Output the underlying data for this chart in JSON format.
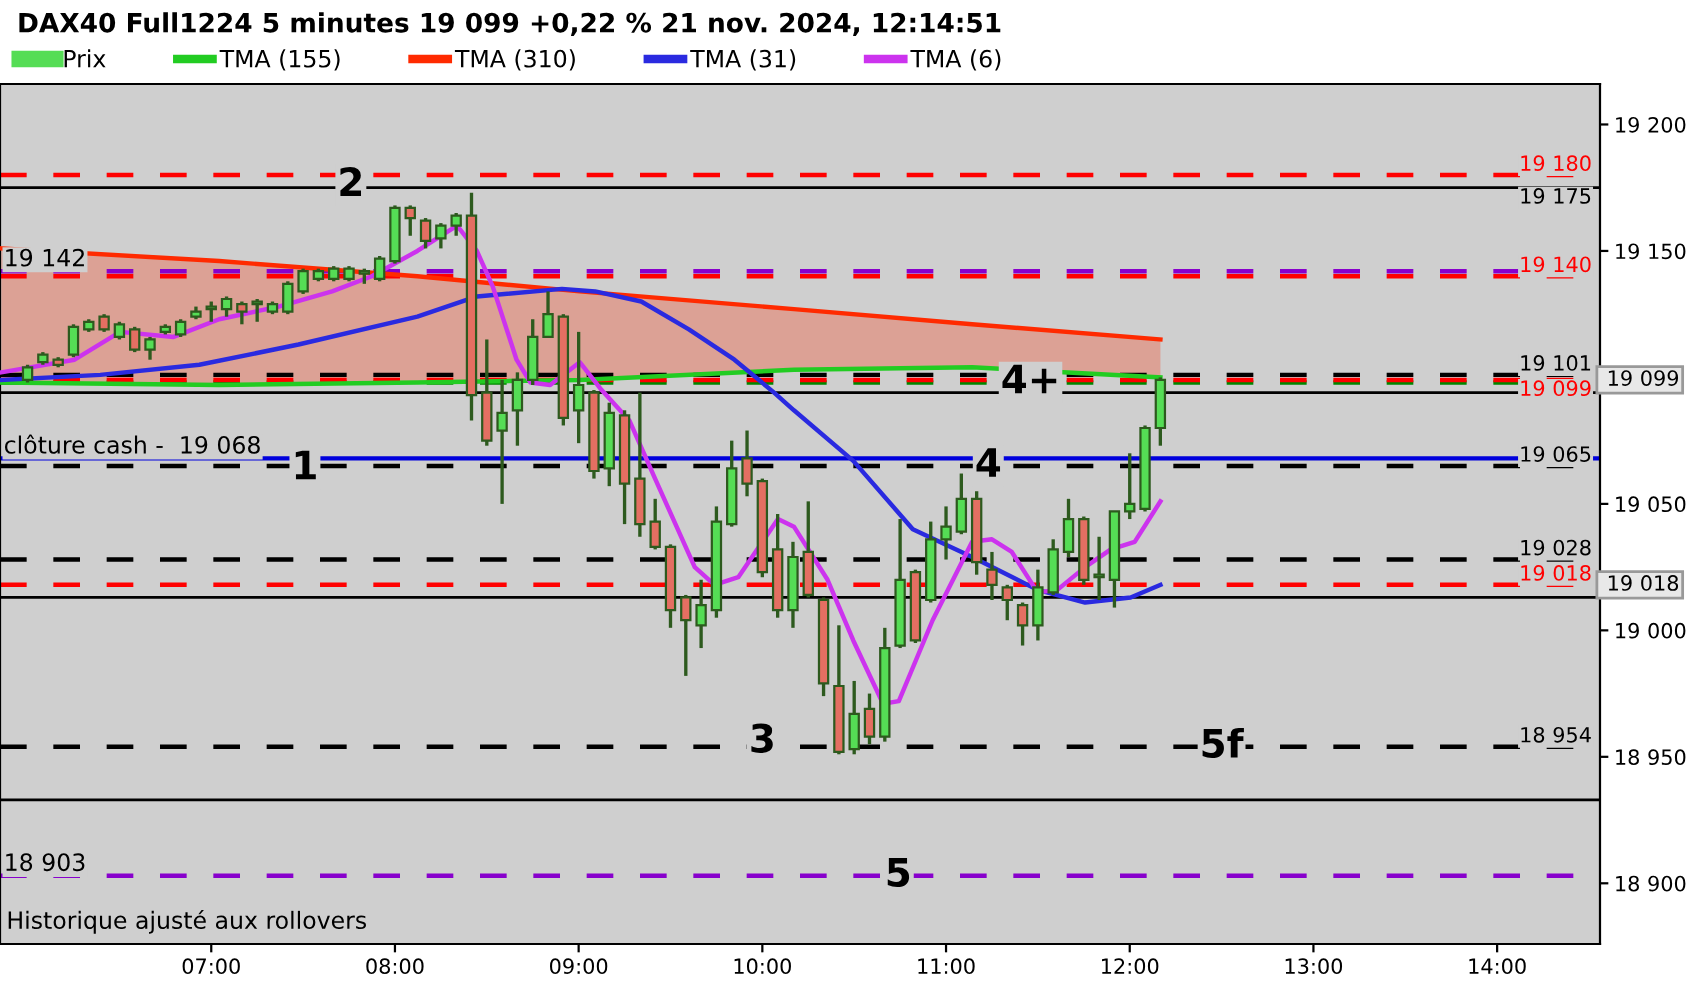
{
  "chart_data": {
    "type": "candlestick",
    "title": "DAX40 Full1224 5 minutes 19 099 +0,22 % 21 nov. 2024, 12:14:51",
    "legend": "top",
    "grid": false,
    "xlim": [
      5.85,
      14.56
    ],
    "ylim": [
      18876,
      19216
    ],
    "xticks": [
      {
        "value": 7,
        "label": "07:00"
      },
      {
        "value": 8,
        "label": "08:00"
      },
      {
        "value": 9,
        "label": "09:00"
      },
      {
        "value": 10,
        "label": "10:00"
      },
      {
        "value": 11,
        "label": "11:00"
      },
      {
        "value": 12,
        "label": "12:00"
      },
      {
        "value": 13,
        "label": "13:00"
      },
      {
        "value": 14,
        "label": "14:00"
      }
    ],
    "yticks": [
      {
        "value": 18900,
        "label": "18 900"
      },
      {
        "value": 18950,
        "label": "18 950"
      },
      {
        "value": 19000,
        "label": "19 000"
      },
      {
        "value": 19050,
        "label": "19 050"
      },
      {
        "value": 19150,
        "label": "19 150"
      },
      {
        "value": 19200,
        "label": "19 200"
      }
    ],
    "series": [
      {
        "name": "Prix",
        "x": [
          6.0,
          6.0833,
          6.1667,
          6.25,
          6.3333,
          6.4167,
          6.5,
          6.5833,
          6.6667,
          6.75,
          6.8333,
          6.9167,
          7.0,
          7.0833,
          7.1667,
          7.25,
          7.3333,
          7.4167,
          7.5,
          7.5833,
          7.6667,
          7.75,
          7.8333,
          7.9167,
          8.0,
          8.0833,
          8.1667,
          8.25,
          8.3333,
          8.4167,
          8.5,
          8.5833,
          8.6667,
          8.75,
          8.8333,
          8.9167,
          9.0,
          9.0833,
          9.1667,
          9.25,
          9.3333,
          9.4167,
          9.5,
          9.5833,
          9.6667,
          9.75,
          9.8333,
          9.9167,
          10.0,
          10.0833,
          10.1667,
          10.25,
          10.3333,
          10.4167,
          10.5,
          10.5833,
          10.6667,
          10.75,
          10.8333,
          10.9167,
          11.0,
          11.0833,
          11.1667,
          11.25,
          11.3333,
          11.4167,
          11.5,
          11.5833,
          11.6667,
          11.75,
          11.8333,
          11.9167,
          12.0,
          12.0833,
          12.1667
        ],
        "ohlc": [
          [
            19099,
            19105,
            19098,
            19104
          ],
          [
            19106,
            19110,
            19105,
            19109
          ],
          [
            19107,
            19108,
            19104,
            19105
          ],
          [
            19109,
            19121,
            19108,
            19120
          ],
          [
            19119,
            19123,
            19118,
            19122
          ],
          [
            19124,
            19125,
            19118,
            19119
          ],
          [
            19116,
            19122,
            19115,
            19121
          ],
          [
            19119,
            19120,
            19110,
            19111
          ],
          [
            19111,
            19116,
            19107,
            19115
          ],
          [
            19118,
            19121,
            19117,
            19120
          ],
          [
            19117,
            19123,
            19116,
            19122
          ],
          [
            19124,
            19128,
            19123,
            19126
          ],
          [
            19127,
            19130,
            19122,
            19128
          ],
          [
            19127,
            19132,
            19124,
            19131
          ],
          [
            19129,
            19130,
            19121,
            19126
          ],
          [
            19129,
            19131,
            19122,
            19130
          ],
          [
            19126,
            19130,
            19125,
            19129
          ],
          [
            19126,
            19138,
            19125,
            19137
          ],
          [
            19134,
            19143,
            19133,
            19142
          ],
          [
            19139,
            19143,
            19138,
            19142
          ],
          [
            19139,
            19144,
            19138,
            19143
          ],
          [
            19139,
            19144,
            19138,
            19143
          ],
          [
            19141,
            19143,
            19137,
            19142
          ],
          [
            19139,
            19148,
            19138,
            19147
          ],
          [
            19146,
            19168,
            19145,
            19167
          ],
          [
            19167,
            19168,
            19156,
            19163
          ],
          [
            19162,
            19163,
            19151,
            19154
          ],
          [
            19155,
            19161,
            19151,
            19160
          ],
          [
            19160,
            19165,
            19156,
            19164
          ],
          [
            19164,
            19173,
            19083,
            19093
          ],
          [
            19094,
            19115,
            19073,
            19075
          ],
          [
            19079,
            19099,
            19050,
            19086
          ],
          [
            19087,
            19102,
            19073,
            19099
          ],
          [
            19099,
            19123,
            19097,
            19116
          ],
          [
            19116,
            19134,
            19116,
            19125
          ],
          [
            19124,
            19125,
            19081,
            19084
          ],
          [
            19087,
            19118,
            19074,
            19097
          ],
          [
            19094,
            19095,
            19060,
            19063
          ],
          [
            19064,
            19090,
            19057,
            19086
          ],
          [
            19085,
            19087,
            19042,
            19058
          ],
          [
            19060,
            19094,
            19037,
            19042
          ],
          [
            19043,
            19052,
            19032,
            19033
          ],
          [
            19033,
            19034,
            19001,
            19008
          ],
          [
            19013,
            19014,
            18982,
            19004
          ],
          [
            19002,
            19020,
            18993,
            19010
          ],
          [
            19008,
            19049,
            19005,
            19043
          ],
          [
            19042,
            19075,
            19041,
            19064
          ],
          [
            19068,
            19079,
            19053,
            19058
          ],
          [
            19059,
            19060,
            19021,
            19023
          ],
          [
            19032,
            19046,
            19005,
            19008
          ],
          [
            19008,
            19035,
            19001,
            19029
          ],
          [
            19031,
            19051,
            19013,
            19014
          ],
          [
            19012,
            19013,
            18974,
            18979
          ],
          [
            18978,
            19002,
            18951,
            18952
          ],
          [
            18953,
            18980,
            18951,
            18967
          ],
          [
            18969,
            18975,
            18955,
            18958
          ],
          [
            18958,
            19001,
            18956,
            18993
          ],
          [
            18994,
            19044,
            18993,
            19020
          ],
          [
            19023,
            19024,
            18995,
            18996
          ],
          [
            19012,
            19043,
            19011,
            19036
          ],
          [
            19036,
            19049,
            19028,
            19041
          ],
          [
            19039,
            19062,
            19038,
            19052
          ],
          [
            19052,
            19055,
            19022,
            19027
          ],
          [
            19024,
            19031,
            19012,
            19018
          ],
          [
            19017,
            19018,
            19004,
            19012
          ],
          [
            19010,
            19011,
            18994,
            19002
          ],
          [
            19002,
            19024,
            18996,
            19017
          ],
          [
            19015,
            19036,
            19014,
            19032
          ],
          [
            19031,
            19052,
            19029,
            19044
          ],
          [
            19044,
            19045,
            19018,
            19020
          ],
          [
            19021,
            19037,
            19012,
            19022
          ],
          [
            19020,
            19047,
            19009,
            19047
          ],
          [
            19047,
            19070,
            19044,
            19050
          ],
          [
            19048,
            19081,
            19047,
            19080
          ],
          [
            19080,
            19100,
            19073,
            19099
          ]
        ],
        "colors": [
          "#55dd55",
          "#55dd55",
          "#e46f62",
          "#55dd55",
          "#55dd55",
          "#e46f62",
          "#55dd55",
          "#e46f62",
          "#55dd55",
          "#55dd55",
          "#55dd55",
          "#55dd55",
          "#55dd55",
          "#55dd55",
          "#e46f62",
          "#55dd55",
          "#55dd55",
          "#55dd55",
          "#55dd55",
          "#55dd55",
          "#55dd55",
          "#55dd55",
          "#55dd55",
          "#55dd55",
          "#55dd55",
          "#e46f62",
          "#e46f62",
          "#55dd55",
          "#55dd55",
          "#e46f62",
          "#e46f62",
          "#55dd55",
          "#55dd55",
          "#55dd55",
          "#55dd55",
          "#e46f62",
          "#55dd55",
          "#e46f62",
          "#55dd55",
          "#e46f62",
          "#e46f62",
          "#e46f62",
          "#e46f62",
          "#e46f62",
          "#55dd55",
          "#55dd55",
          "#55dd55",
          "#e46f62",
          "#e46f62",
          "#e46f62",
          "#55dd55",
          "#e46f62",
          "#e46f62",
          "#e46f62",
          "#55dd55",
          "#e46f62",
          "#55dd55",
          "#55dd55",
          "#e46f62",
          "#55dd55",
          "#55dd55",
          "#55dd55",
          "#e46f62",
          "#e46f62",
          "#e46f62",
          "#e46f62",
          "#55dd55",
          "#55dd55",
          "#55dd55",
          "#e46f62",
          "#55dd55",
          "#55dd55",
          "#55dd55",
          "#55dd55",
          "#55dd55"
        ]
      },
      {
        "name": "TMA (155)",
        "type": "line",
        "color": "#22cc22",
        "x": [
          5.857,
          7.043,
          8.122,
          9.006,
          10.172,
          11.142,
          12.167
        ],
        "values": [
          19098,
          19097,
          19098,
          19099,
          19103,
          19104,
          19100
        ]
      },
      {
        "name": "TMA (310)",
        "type": "line",
        "color": "#ff2a00",
        "x": [
          5.857,
          7.043,
          8.122,
          9.006,
          10.172,
          11.142,
          12.167
        ],
        "values": [
          19151,
          19146,
          19140,
          19134,
          19127,
          19121,
          19115
        ],
        "lower": [
          19098,
          19097,
          19098,
          19099,
          19103,
          19104,
          19100
        ],
        "upper": [
          19151,
          19146,
          19140,
          19134,
          19127,
          19121,
          19115
        ]
      },
      {
        "name": "TMA (31)",
        "type": "line",
        "color": "#2a2ae0",
        "x": [
          5.857,
          6.396,
          6.935,
          7.475,
          8.122,
          8.446,
          8.909,
          9.09,
          9.341,
          9.6,
          9.848,
          10.064,
          10.172,
          10.495,
          10.819,
          11.142,
          11.498,
          11.757,
          12.005,
          12.167
        ],
        "values": [
          19099,
          19101,
          19105,
          19113,
          19124,
          19132,
          19135,
          19134,
          19130,
          19119,
          19107,
          19094,
          19087,
          19067,
          19040,
          19029,
          19016,
          19011,
          19013,
          19018
        ]
      },
      {
        "name": "TMA (6)",
        "type": "line",
        "color": "#cc33ee",
        "x": [
          5.857,
          6.256,
          6.504,
          6.795,
          7.043,
          7.367,
          7.658,
          7.874,
          8.122,
          8.338,
          8.446,
          8.532,
          8.662,
          8.737,
          8.845,
          9.006,
          9.125,
          9.276,
          9.416,
          9.632,
          9.74,
          9.869,
          10.085,
          10.172,
          10.355,
          10.495,
          10.657,
          10.743,
          10.927,
          11.142,
          11.25,
          11.358,
          11.498,
          11.606,
          11.757,
          11.897,
          12.027,
          12.167
        ],
        "values": [
          19102,
          19107,
          19118,
          19116,
          19123,
          19128,
          19134,
          19140,
          19150,
          19160,
          19150,
          19136,
          19107,
          19098,
          19097,
          19106,
          19095,
          19083,
          19060,
          19025,
          19018,
          19021,
          19044,
          19041,
          19020,
          18996,
          18971,
          18972,
          19004,
          19035,
          19036,
          19031,
          19015,
          19016,
          19025,
          19032,
          19035,
          19051
        ]
      }
    ],
    "ref_lines": [
      {
        "axis": "y",
        "value": 19180,
        "label": "19 180",
        "color": "#ff0000",
        "line_style": "dashed"
      },
      {
        "axis": "y",
        "value": 19175,
        "label": "19 175",
        "color": "#000000",
        "line_style": "solid"
      },
      {
        "axis": "y",
        "value": 19142,
        "color": "#8800cc",
        "line_style": "dashed"
      },
      {
        "axis": "y",
        "value": 19140,
        "label": "19 140",
        "color": "#ff0000",
        "line_style": "dashed"
      },
      {
        "axis": "y",
        "value": 19101,
        "label": "19 101",
        "color": "#000000",
        "line_style": "dashed"
      },
      {
        "axis": "y",
        "value": 19098,
        "color": "#008800",
        "line_style": "dashed"
      },
      {
        "axis": "y",
        "value": 19099,
        "label": "19 099",
        "color": "#ff0000",
        "line_style": "dashed"
      },
      {
        "axis": "y",
        "value": 19094,
        "color": "#000000",
        "line_style": "solid"
      },
      {
        "axis": "y",
        "value": 19068,
        "color": "#0000dd",
        "line_style": "solid"
      },
      {
        "axis": "y",
        "value": 19065,
        "label": "19 065",
        "color": "#000000",
        "line_style": "dashed"
      },
      {
        "axis": "y",
        "value": 19028,
        "label": "19 028",
        "color": "#000000",
        "line_style": "dashed"
      },
      {
        "axis": "y",
        "value": 19018,
        "label": "19 018",
        "color": "#ff0000",
        "line_style": "dashed"
      },
      {
        "axis": "y",
        "value": 19013,
        "color": "#000000",
        "line_style": "solid"
      },
      {
        "axis": "y",
        "value": 18954,
        "label": "18 954",
        "color": "#000000",
        "line_style": "dashed"
      },
      {
        "axis": "y",
        "value": 18933,
        "color": "#000000",
        "line_style": "solid"
      },
      {
        "axis": "y",
        "value": 18903,
        "color": "#8800cc",
        "line_style": "dashed"
      }
    ],
    "annotations": [
      {
        "text": "19 142",
        "x": 5.87,
        "y": 19142
      },
      {
        "text": "clôture cash -  19 068",
        "x": 5.87,
        "y": 19068
      },
      {
        "text": "18 903",
        "x": 5.87,
        "y": 18903
      },
      {
        "text": "1",
        "x": 7.51,
        "y": 19064
      },
      {
        "text": "2",
        "x": 7.76,
        "y": 19176
      },
      {
        "text": "3",
        "x": 10.0,
        "y": 18956
      },
      {
        "text": "4",
        "x": 11.23,
        "y": 19065
      },
      {
        "text": "4+",
        "x": 11.46,
        "y": 19098
      },
      {
        "text": "5f",
        "x": 12.5,
        "y": 18954
      },
      {
        "text": "5",
        "x": 10.74,
        "y": 18903
      },
      {
        "text": "19 099",
        "x": 14.56,
        "y": 19099
      },
      {
        "text": "19 018",
        "x": 14.56,
        "y": 19018
      },
      "Historique ajusté aux rollovers"
    ]
  }
}
